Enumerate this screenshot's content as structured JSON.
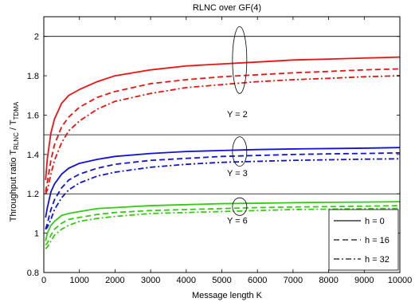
{
  "chart_data": {
    "type": "line",
    "title": "RLNC over GF(4)",
    "xlabel": "Message length K",
    "ylabel_main": "Throughput ratio T",
    "ylabel_sub1": "RLNC",
    "ylabel_mid": " / T",
    "ylabel_sub2": "TDMA",
    "xlim": [
      0,
      10000
    ],
    "ylim": [
      0.8,
      2.1
    ],
    "xticks": [
      0,
      1000,
      2000,
      3000,
      4000,
      5000,
      6000,
      7000,
      8000,
      9000,
      10000
    ],
    "yticks": [
      0.8,
      1.0,
      1.2,
      1.4,
      1.6,
      1.8,
      2.0
    ],
    "ytick_labels": [
      "0.8",
      "1",
      "1.2",
      "1.4",
      "1.6",
      "1.8",
      "2"
    ],
    "grid": false,
    "reference_lines": [
      2.0,
      1.5,
      1.2
    ],
    "colors": {
      "Y2": "#ee1111",
      "Y3": "#1111dd",
      "Y6": "#33cc11",
      "ref": "#000000"
    },
    "groups": [
      {
        "label": "Y = 2",
        "color_key": "Y2",
        "series": [
          {
            "h": 0,
            "points": [
              [
                50,
                1.27
              ],
              [
                100,
                1.38
              ],
              [
                200,
                1.51
              ],
              [
                300,
                1.58
              ],
              [
                500,
                1.66
              ],
              [
                700,
                1.7
              ],
              [
                1000,
                1.73
              ],
              [
                1500,
                1.77
              ],
              [
                2000,
                1.8
              ],
              [
                3000,
                1.83
              ],
              [
                4000,
                1.85
              ],
              [
                5000,
                1.86
              ],
              [
                6000,
                1.87
              ],
              [
                7000,
                1.88
              ],
              [
                8000,
                1.885
              ],
              [
                9000,
                1.89
              ],
              [
                10000,
                1.895
              ]
            ]
          },
          {
            "h": 16,
            "points": [
              [
                50,
                1.21
              ],
              [
                100,
                1.26
              ],
              [
                200,
                1.37
              ],
              [
                300,
                1.45
              ],
              [
                500,
                1.54
              ],
              [
                700,
                1.59
              ],
              [
                1000,
                1.64
              ],
              [
                1500,
                1.69
              ],
              [
                2000,
                1.72
              ],
              [
                3000,
                1.76
              ],
              [
                4000,
                1.78
              ],
              [
                5000,
                1.795
              ],
              [
                6000,
                1.805
              ],
              [
                7000,
                1.815
              ],
              [
                8000,
                1.822
              ],
              [
                9000,
                1.83
              ],
              [
                10000,
                1.835
              ]
            ]
          },
          {
            "h": 32,
            "points": [
              [
                50,
                1.2
              ],
              [
                100,
                1.22
              ],
              [
                200,
                1.3
              ],
              [
                300,
                1.37
              ],
              [
                500,
                1.46
              ],
              [
                700,
                1.52
              ],
              [
                1000,
                1.57
              ],
              [
                1500,
                1.63
              ],
              [
                2000,
                1.67
              ],
              [
                3000,
                1.71
              ],
              [
                4000,
                1.74
              ],
              [
                5000,
                1.755
              ],
              [
                6000,
                1.77
              ],
              [
                7000,
                1.78
              ],
              [
                8000,
                1.787
              ],
              [
                9000,
                1.795
              ],
              [
                10000,
                1.8
              ]
            ]
          }
        ]
      },
      {
        "label": "Y = 3",
        "color_key": "Y3",
        "series": [
          {
            "h": 0,
            "points": [
              [
                50,
                1.08
              ],
              [
                100,
                1.13
              ],
              [
                200,
                1.21
              ],
              [
                300,
                1.25
              ],
              [
                500,
                1.3
              ],
              [
                700,
                1.33
              ],
              [
                1000,
                1.355
              ],
              [
                1500,
                1.375
              ],
              [
                2000,
                1.39
              ],
              [
                3000,
                1.405
              ],
              [
                4000,
                1.415
              ],
              [
                5000,
                1.42
              ],
              [
                6000,
                1.425
              ],
              [
                7000,
                1.428
              ],
              [
                8000,
                1.43
              ],
              [
                9000,
                1.432
              ],
              [
                10000,
                1.435
              ]
            ]
          },
          {
            "h": 16,
            "points": [
              [
                50,
                1.02
              ],
              [
                100,
                1.05
              ],
              [
                200,
                1.12
              ],
              [
                300,
                1.17
              ],
              [
                500,
                1.23
              ],
              [
                700,
                1.27
              ],
              [
                1000,
                1.3
              ],
              [
                1500,
                1.33
              ],
              [
                2000,
                1.35
              ],
              [
                3000,
                1.37
              ],
              [
                4000,
                1.38
              ],
              [
                5000,
                1.39
              ],
              [
                6000,
                1.395
              ],
              [
                7000,
                1.4
              ],
              [
                8000,
                1.403
              ],
              [
                9000,
                1.405
              ],
              [
                10000,
                1.408
              ]
            ]
          },
          {
            "h": 32,
            "points": [
              [
                50,
                1.02
              ],
              [
                100,
                1.03
              ],
              [
                200,
                1.07
              ],
              [
                300,
                1.12
              ],
              [
                500,
                1.18
              ],
              [
                700,
                1.22
              ],
              [
                1000,
                1.255
              ],
              [
                1500,
                1.29
              ],
              [
                2000,
                1.31
              ],
              [
                3000,
                1.335
              ],
              [
                4000,
                1.35
              ],
              [
                5000,
                1.36
              ],
              [
                6000,
                1.365
              ],
              [
                7000,
                1.37
              ],
              [
                8000,
                1.373
              ],
              [
                9000,
                1.376
              ],
              [
                10000,
                1.378
              ]
            ]
          }
        ]
      },
      {
        "label": "Y = 6",
        "color_key": "Y6",
        "series": [
          {
            "h": 0,
            "points": [
              [
                50,
                0.96
              ],
              [
                100,
                1.0
              ],
              [
                200,
                1.04
              ],
              [
                300,
                1.06
              ],
              [
                500,
                1.09
              ],
              [
                700,
                1.1
              ],
              [
                1000,
                1.11
              ],
              [
                1500,
                1.125
              ],
              [
                2000,
                1.13
              ],
              [
                3000,
                1.14
              ],
              [
                4000,
                1.145
              ],
              [
                5000,
                1.15
              ],
              [
                6000,
                1.152
              ],
              [
                7000,
                1.155
              ],
              [
                8000,
                1.157
              ],
              [
                9000,
                1.158
              ],
              [
                10000,
                1.16
              ]
            ]
          },
          {
            "h": 16,
            "points": [
              [
                50,
                0.94
              ],
              [
                100,
                0.95
              ],
              [
                200,
                0.99
              ],
              [
                300,
                1.02
              ],
              [
                500,
                1.05
              ],
              [
                700,
                1.07
              ],
              [
                1000,
                1.08
              ],
              [
                1500,
                1.095
              ],
              [
                2000,
                1.105
              ],
              [
                3000,
                1.115
              ],
              [
                4000,
                1.12
              ],
              [
                5000,
                1.125
              ],
              [
                6000,
                1.13
              ],
              [
                7000,
                1.133
              ],
              [
                8000,
                1.135
              ],
              [
                9000,
                1.137
              ],
              [
                10000,
                1.14
              ]
            ]
          },
          {
            "h": 32,
            "points": [
              [
                50,
                0.92
              ],
              [
                100,
                0.93
              ],
              [
                200,
                0.96
              ],
              [
                300,
                0.99
              ],
              [
                500,
                1.02
              ],
              [
                700,
                1.04
              ],
              [
                1000,
                1.06
              ],
              [
                1500,
                1.075
              ],
              [
                2000,
                1.085
              ],
              [
                3000,
                1.1
              ],
              [
                4000,
                1.105
              ],
              [
                5000,
                1.11
              ],
              [
                6000,
                1.115
              ],
              [
                7000,
                1.12
              ],
              [
                8000,
                1.122
              ],
              [
                9000,
                1.124
              ],
              [
                10000,
                1.126
              ]
            ]
          }
        ]
      }
    ],
    "annotations": [
      {
        "text": "Y = 2",
        "x": 5500,
        "y": 1.59,
        "ellipse_y_range": [
          1.71,
          2.05
        ]
      },
      {
        "text": "Y = 3",
        "x": 5500,
        "y": 1.29,
        "ellipse_y_range": [
          1.34,
          1.49
        ]
      },
      {
        "text": "Y = 6",
        "x": 5500,
        "y": 1.05,
        "ellipse_y_range": [
          1.09,
          1.18
        ]
      }
    ],
    "legend": {
      "position": "bottom-right",
      "entries": [
        {
          "label": "h = 0",
          "dash": "solid"
        },
        {
          "label": "h = 16",
          "dash": "dashed"
        },
        {
          "label": "h = 32",
          "dash": "dashdot"
        }
      ]
    }
  }
}
